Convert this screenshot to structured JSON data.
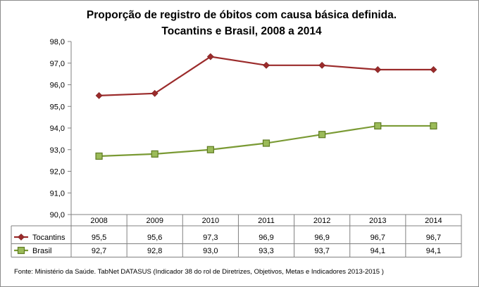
{
  "chart_data": {
    "type": "line",
    "title_line1": "Proporção de registro de óbitos com causa básica definida.",
    "title_line2": "Tocantins e Brasil, 2008 a 2014",
    "categories": [
      "2008",
      "2009",
      "2010",
      "2011",
      "2012",
      "2013",
      "2014"
    ],
    "ylim": [
      90,
      98
    ],
    "yticks": [
      "90,0",
      "91,0",
      "92,0",
      "93,0",
      "94,0",
      "95,0",
      "96,0",
      "97,0",
      "98,0"
    ],
    "series": [
      {
        "name": "Tocantins",
        "values": [
          95.5,
          95.6,
          97.3,
          96.9,
          96.9,
          96.7,
          96.7
        ],
        "labels": [
          "95,5",
          "95,6",
          "97,3",
          "96,9",
          "96,9",
          "96,7",
          "96,7"
        ],
        "color": "#9B2B2B",
        "marker": "diamond"
      },
      {
        "name": "Brasil",
        "values": [
          92.7,
          92.8,
          93.0,
          93.3,
          93.7,
          94.1,
          94.1
        ],
        "labels": [
          "92,7",
          "92,8",
          "93,0",
          "93,3",
          "93,7",
          "94,1",
          "94,1"
        ],
        "color": "#7A9A34",
        "marker": "square"
      }
    ],
    "source": "Fonte: Ministério da Saúde. TabNet DATASUS (Indicador 38 do rol de Diretrizes, Objetivos, Metas e Indicadores 2013-2015 )"
  }
}
